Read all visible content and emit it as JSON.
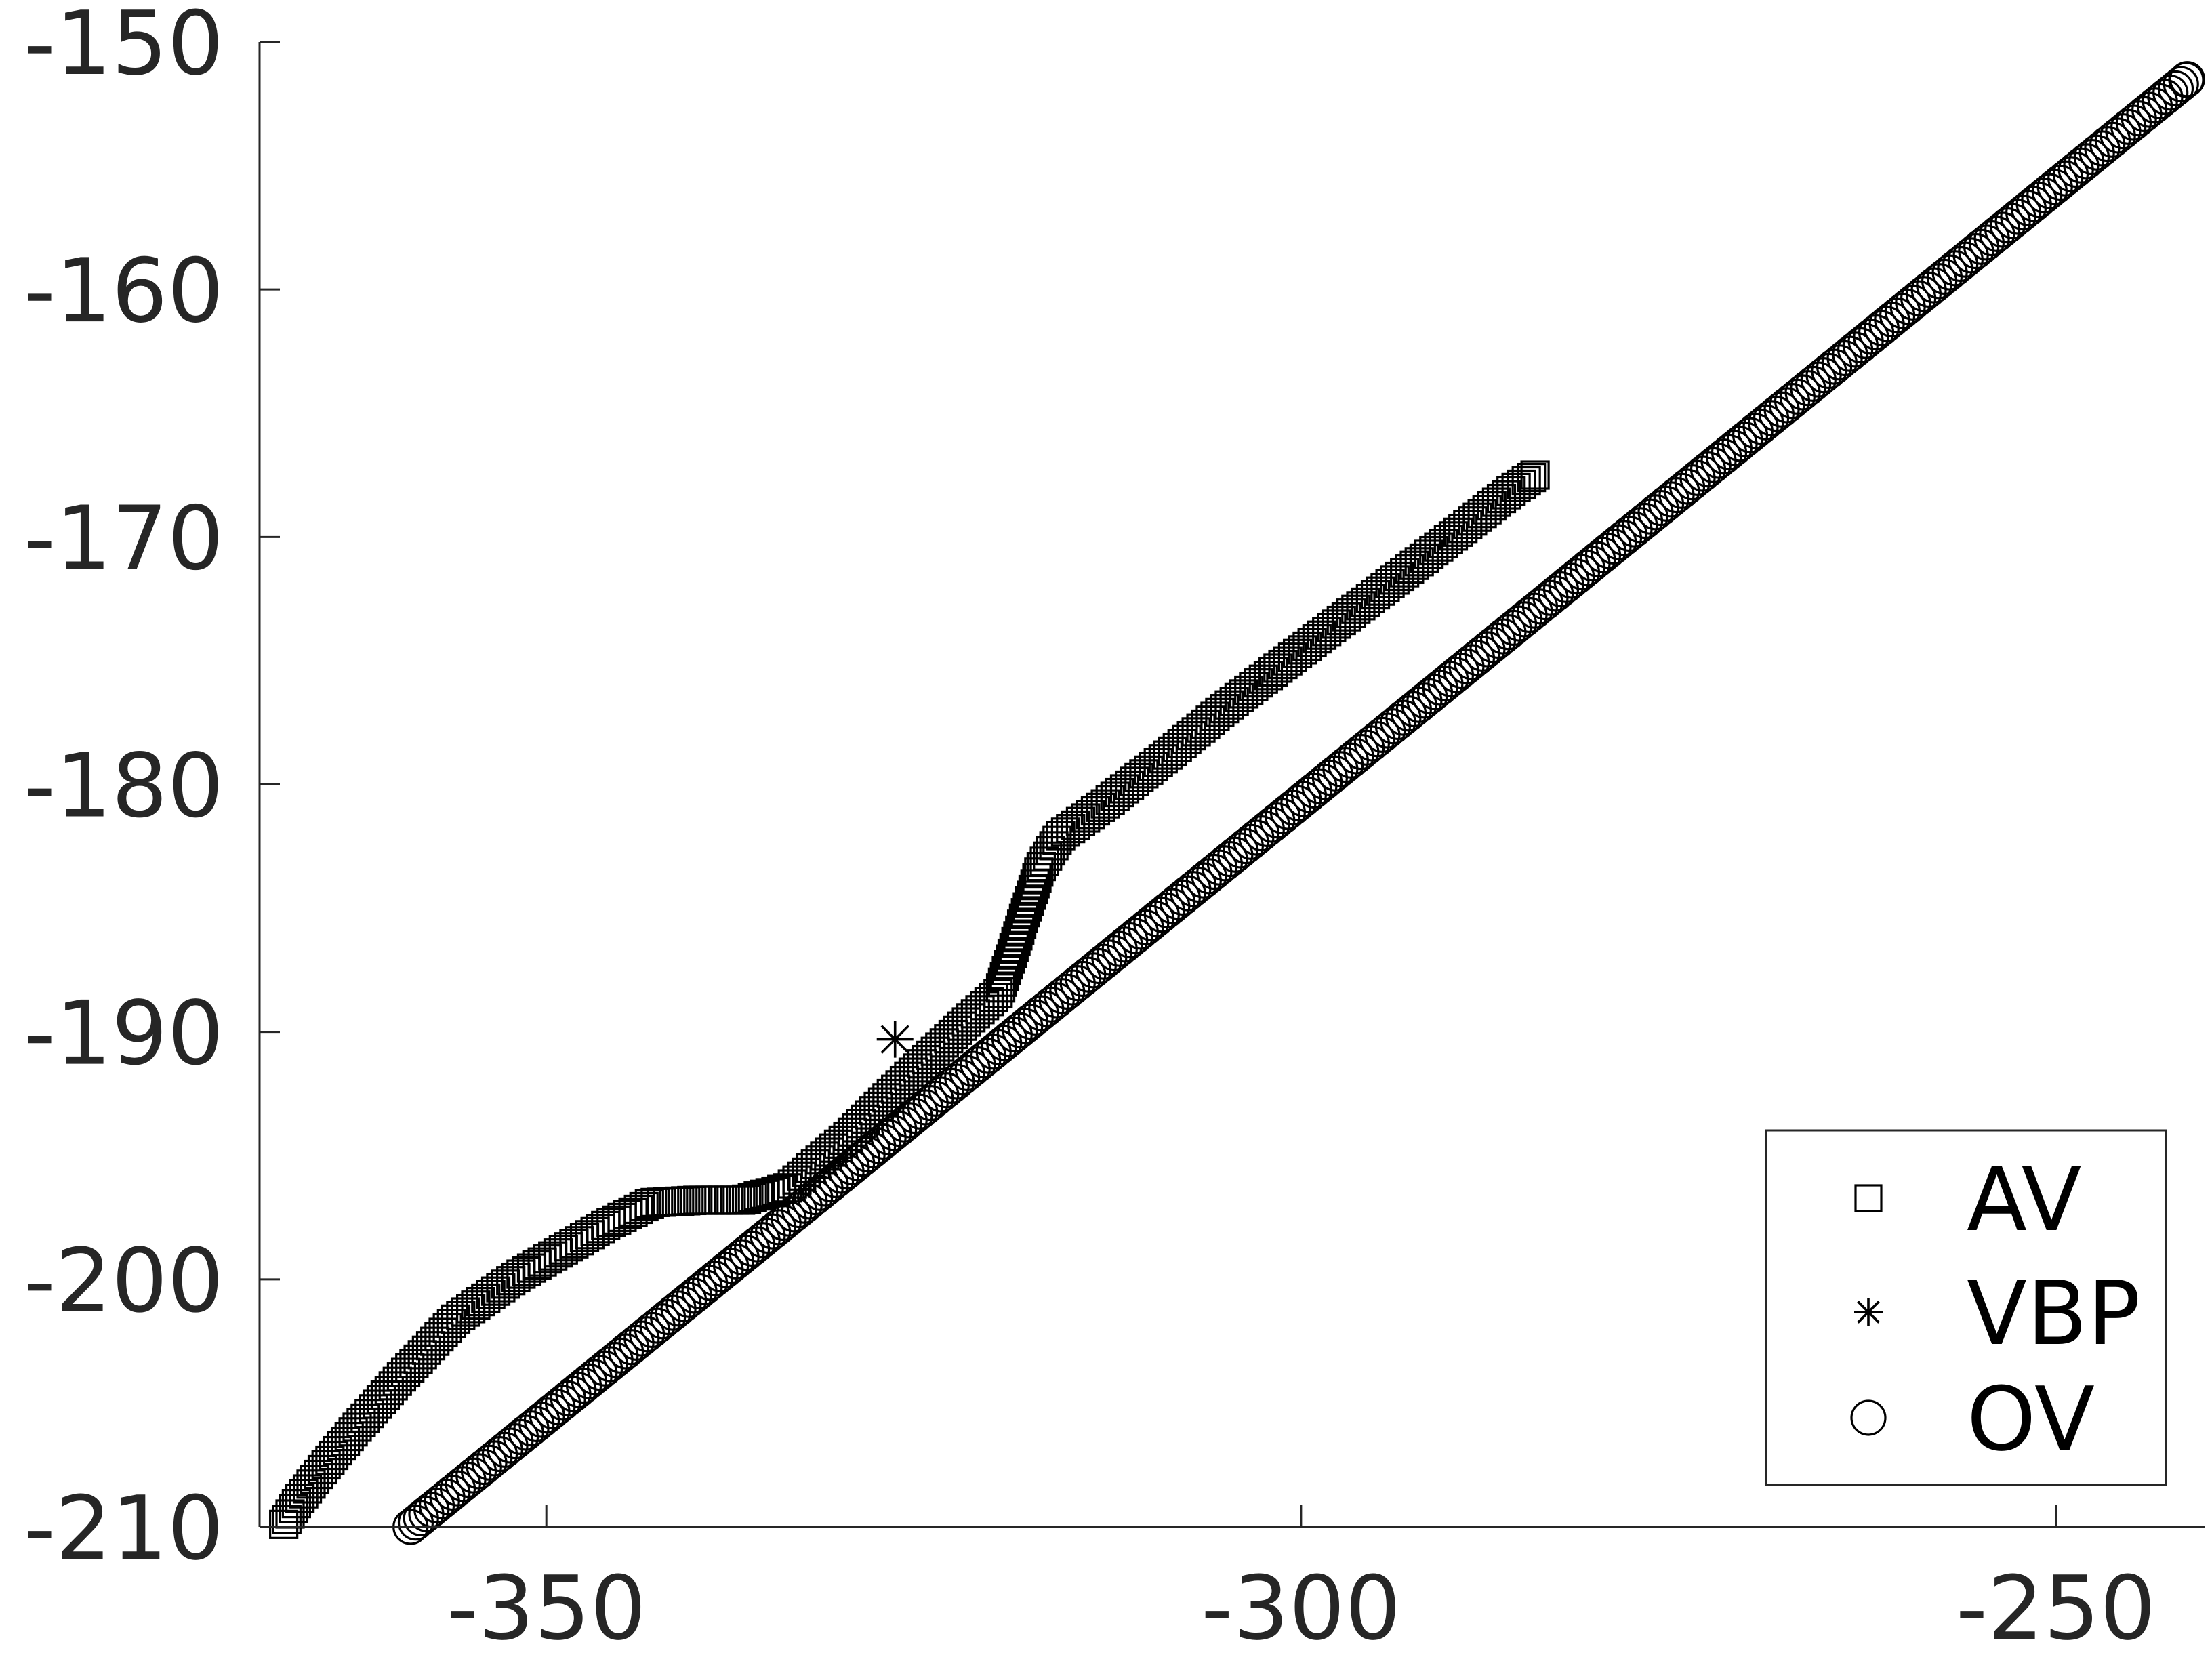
{
  "chart_data": {
    "type": "scatter",
    "title": "",
    "xlabel": "",
    "ylabel": "",
    "xlim": [
      -369,
      -241
    ],
    "ylim": [
      -210,
      -150
    ],
    "x_ticks": [
      -350,
      -300,
      -250
    ],
    "y_ticks": [
      -210,
      -200,
      -190,
      -180,
      -170,
      -160,
      -150
    ],
    "x_tick_labels": [
      "-350",
      "-300",
      "-250"
    ],
    "y_tick_labels": [
      "-210",
      "-200",
      "-190",
      "-180",
      "-170",
      "-160",
      "-150"
    ],
    "grid": false,
    "legend": {
      "placement": "bottom-right",
      "entries": [
        {
          "label": "AV",
          "marker": "square"
        },
        {
          "label": "VBP",
          "marker": "asterisk"
        },
        {
          "label": "OV",
          "marker": "circle"
        }
      ]
    },
    "color": "#000000",
    "series": [
      {
        "name": "AV",
        "marker": "square",
        "points": [
          [
            -367.4,
            -209.9
          ],
          [
            -366.5,
            -209.0
          ],
          [
            -365.0,
            -207.8
          ],
          [
            -363.0,
            -206.3
          ],
          [
            -360.0,
            -204.2
          ],
          [
            -356.0,
            -201.6
          ],
          [
            -352.0,
            -199.9
          ],
          [
            -346.0,
            -197.8
          ],
          [
            -343.0,
            -196.9
          ],
          [
            -340.0,
            -196.8
          ],
          [
            -337.0,
            -196.8
          ],
          [
            -334.0,
            -196.3
          ],
          [
            -330.0,
            -194.2
          ],
          [
            -326.0,
            -191.8
          ],
          [
            -322.0,
            -189.5
          ],
          [
            -320.0,
            -188.4
          ],
          [
            -318.7,
            -186.0
          ],
          [
            -317.3,
            -183.4
          ],
          [
            -316.0,
            -182.1
          ],
          [
            -313.0,
            -180.8
          ],
          [
            -309.0,
            -178.9
          ],
          [
            -305.0,
            -176.9
          ],
          [
            -300.0,
            -174.6
          ],
          [
            -295.0,
            -172.3
          ],
          [
            -290.0,
            -170.0
          ],
          [
            -286.0,
            -168.1
          ],
          [
            -284.5,
            -167.5
          ]
        ]
      },
      {
        "name": "VBP",
        "marker": "asterisk",
        "points": [
          [
            -326.9,
            -190.3
          ]
        ]
      },
      {
        "name": "OV",
        "marker": "circle",
        "points": [
          [
            -359.0,
            -210.0
          ],
          [
            -241.3,
            -151.5
          ]
        ]
      }
    ]
  }
}
